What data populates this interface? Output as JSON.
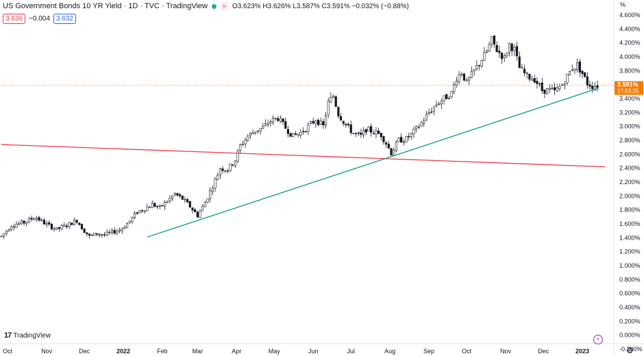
{
  "header": {
    "title": "US Government Bonds 10 YR Yield · 1D · TVC · TradingView",
    "eq_badge": "≈",
    "ohlc": "O3.623% H3.626% L3.587% C3.591% −0.032% (−0.88%)",
    "sell_price": "3.636",
    "spread": "−0.004",
    "buy_price": "3.632"
  },
  "branding": {
    "logo_mark": "17",
    "logo_text": "TradingView"
  },
  "axis_unit": "%",
  "icons": {
    "lightning": "lightning-icon",
    "settings": "gear-icon",
    "bolt_glyph": "⚡",
    "gear_glyph": "⚙"
  },
  "colors": {
    "up": "#ffffff",
    "down": "#131722",
    "red_line": "#f23645",
    "green_line": "#089981",
    "last_price": "#f57c00",
    "axis_text": "#131722"
  },
  "chart_data": {
    "type": "candlestick",
    "title": "US Government Bonds 10 YR Yield",
    "ylim": [
      -0.1,
      4.7
    ],
    "yticks": [
      4.6,
      4.4,
      4.2,
      4.0,
      3.8,
      3.6,
      3.4,
      3.2,
      3.0,
      2.8,
      2.6,
      2.4,
      2.2,
      2.0,
      1.8,
      1.6,
      1.4,
      1.2,
      1.0,
      0.8,
      0.6,
      0.4,
      0.2,
      0.0,
      -0.2
    ],
    "ytick_labels": [
      "4.600%",
      "4.400%",
      "4.200%",
      "4.000%",
      "3.800%",
      "3.600%",
      "3.400%",
      "3.200%",
      "3.000%",
      "2.800%",
      "2.600%",
      "2.400%",
      "2.200%",
      "2.000%",
      "1.800%",
      "1.600%",
      "1.400%",
      "1.200%",
      "1.000%",
      "0.800%",
      "0.600%",
      "0.400%",
      "0.200%",
      "0.000%",
      "-0.200%"
    ],
    "x_range_days": [
      0,
      480
    ],
    "xticks": [
      {
        "day": 5,
        "label": "Oct"
      },
      {
        "day": 36,
        "label": "Nov"
      },
      {
        "day": 66,
        "label": "Dec"
      },
      {
        "day": 97,
        "label": "2022"
      },
      {
        "day": 128,
        "label": "Feb"
      },
      {
        "day": 156,
        "label": "Mar"
      },
      {
        "day": 187,
        "label": "Apr"
      },
      {
        "day": 217,
        "label": "May"
      },
      {
        "day": 248,
        "label": "Jun"
      },
      {
        "day": 278,
        "label": "Jul"
      },
      {
        "day": 309,
        "label": "Aug"
      },
      {
        "day": 340,
        "label": "Sep"
      },
      {
        "day": 370,
        "label": "Oct"
      },
      {
        "day": 401,
        "label": "Nov"
      },
      {
        "day": 431,
        "label": "Dec"
      },
      {
        "day": 462,
        "label": "2023"
      }
    ],
    "price_path": [
      [
        0,
        1.42
      ],
      [
        8,
        1.58
      ],
      [
        18,
        1.62
      ],
      [
        27,
        1.7
      ],
      [
        35,
        1.6
      ],
      [
        44,
        1.52
      ],
      [
        52,
        1.58
      ],
      [
        60,
        1.65
      ],
      [
        65,
        1.52
      ],
      [
        70,
        1.42
      ],
      [
        76,
        1.46
      ],
      [
        82,
        1.44
      ],
      [
        88,
        1.48
      ],
      [
        95,
        1.52
      ],
      [
        102,
        1.64
      ],
      [
        108,
        1.77
      ],
      [
        114,
        1.82
      ],
      [
        120,
        1.88
      ],
      [
        126,
        1.83
      ],
      [
        132,
        1.93
      ],
      [
        138,
        2.03
      ],
      [
        144,
        1.96
      ],
      [
        150,
        1.85
      ],
      [
        156,
        1.72
      ],
      [
        162,
        1.91
      ],
      [
        168,
        2.14
      ],
      [
        174,
        2.4
      ],
      [
        180,
        2.38
      ],
      [
        186,
        2.52
      ],
      [
        190,
        2.72
      ],
      [
        196,
        2.86
      ],
      [
        202,
        2.94
      ],
      [
        208,
        2.98
      ],
      [
        214,
        3.08
      ],
      [
        220,
        3.12
      ],
      [
        226,
        2.98
      ],
      [
        232,
        2.86
      ],
      [
        238,
        2.91
      ],
      [
        244,
        3.0
      ],
      [
        250,
        3.1
      ],
      [
        256,
        3.0
      ],
      [
        260,
        3.34
      ],
      [
        264,
        3.44
      ],
      [
        268,
        3.18
      ],
      [
        274,
        3.02
      ],
      [
        280,
        2.9
      ],
      [
        286,
        2.86
      ],
      [
        290,
        2.96
      ],
      [
        296,
        2.92
      ],
      [
        302,
        2.88
      ],
      [
        306,
        2.76
      ],
      [
        310,
        2.62
      ],
      [
        316,
        2.8
      ],
      [
        322,
        2.82
      ],
      [
        328,
        2.92
      ],
      [
        334,
        3.05
      ],
      [
        340,
        3.2
      ],
      [
        346,
        3.32
      ],
      [
        352,
        3.4
      ],
      [
        358,
        3.48
      ],
      [
        362,
        3.7
      ],
      [
        366,
        3.78
      ],
      [
        370,
        3.62
      ],
      [
        376,
        3.8
      ],
      [
        382,
        3.96
      ],
      [
        386,
        4.08
      ],
      [
        390,
        4.24
      ],
      [
        394,
        4.1
      ],
      [
        400,
        3.98
      ],
      [
        404,
        4.18
      ],
      [
        408,
        4.1
      ],
      [
        412,
        3.84
      ],
      [
        418,
        3.72
      ],
      [
        424,
        3.68
      ],
      [
        430,
        3.52
      ],
      [
        436,
        3.52
      ],
      [
        440,
        3.5
      ],
      [
        446,
        3.6
      ],
      [
        450,
        3.72
      ],
      [
        454,
        3.84
      ],
      [
        458,
        3.88
      ],
      [
        462,
        3.76
      ],
      [
        466,
        3.62
      ],
      [
        470,
        3.58
      ],
      [
        474,
        3.59
      ]
    ],
    "trendlines": [
      {
        "name": "resistance-line",
        "color": "#f23645",
        "from": [
          0,
          2.74
        ],
        "to": [
          480,
          2.42
        ]
      },
      {
        "name": "support-line",
        "color": "#089981",
        "from": [
          116,
          1.41
        ],
        "to": [
          475,
          3.55
        ]
      }
    ],
    "last_price": {
      "value": 3.591,
      "label": "3.591%",
      "countdown": "17:53:25"
    }
  }
}
